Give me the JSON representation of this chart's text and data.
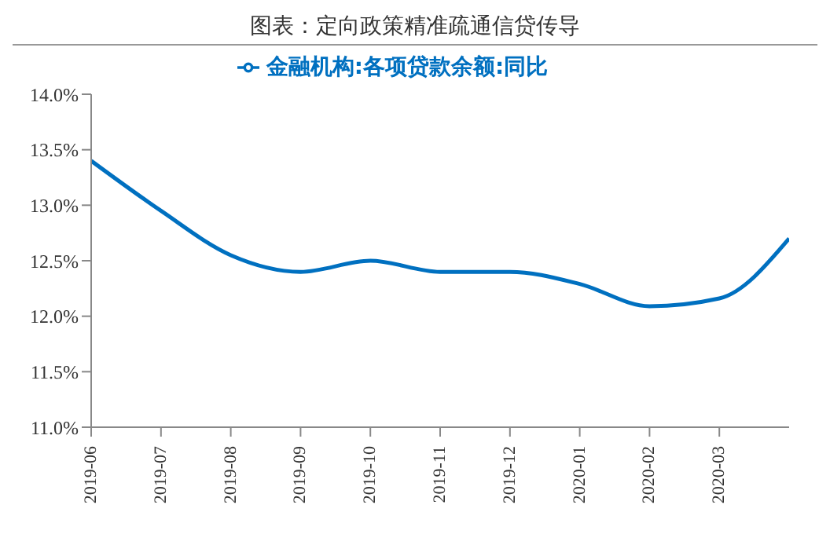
{
  "chart_data": {
    "type": "line",
    "title": "图表：定向政策精准疏通信贷传导",
    "categories": [
      "2019-06",
      "2019-07",
      "2019-08",
      "2019-09",
      "2019-10",
      "2019-11",
      "2019-12",
      "2020-01",
      "2020-02",
      "2020-03",
      null
    ],
    "series": [
      {
        "name": "金融机构:各项贷款余额:同比",
        "color": "#0070c0",
        "values": [
          13.4,
          12.95,
          12.55,
          12.4,
          12.5,
          12.4,
          12.4,
          12.29,
          12.09,
          12.16,
          12.7
        ]
      }
    ],
    "ylim": [
      11,
      14
    ],
    "yticks": [
      {
        "value": 11,
        "label": "11.0%"
      },
      {
        "value": 11.5,
        "label": "11.5%"
      },
      {
        "value": 12,
        "label": "12.0%"
      },
      {
        "value": 12.5,
        "label": "12.5%"
      },
      {
        "value": 13,
        "label": "13.0%"
      },
      {
        "value": 13.5,
        "label": "13.5%"
      },
      {
        "value": 14,
        "label": "14.0%"
      }
    ],
    "grid": false,
    "legend": "top",
    "marker": "none",
    "line_style": "solid"
  }
}
